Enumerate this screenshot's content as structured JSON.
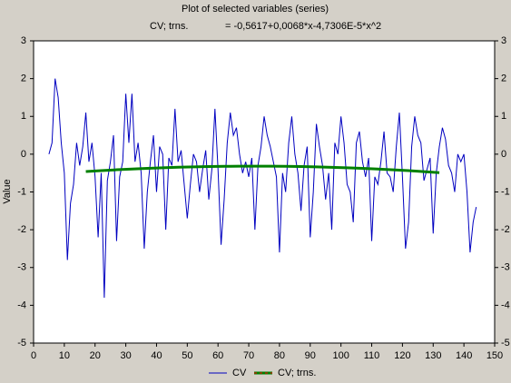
{
  "chart_data": {
    "type": "line",
    "title": "Plot of selected variables (series)",
    "subtitle": "CV; trns.",
    "formula": "= -0,5617+0,0068*x-4,7306E-5*x^2",
    "y_label": "Value",
    "xlim": [
      0,
      150
    ],
    "xticks": [
      0,
      10,
      20,
      30,
      40,
      50,
      60,
      70,
      80,
      90,
      100,
      110,
      120,
      130,
      140,
      150
    ],
    "ylim": [
      -5,
      3
    ],
    "yticks": [
      -5,
      -4,
      -3,
      -2,
      -1,
      0,
      1,
      2,
      3
    ],
    "legend": "bottom",
    "series": [
      {
        "name": "CV",
        "color": "#0000c0",
        "x": [
          5,
          6,
          7,
          8,
          9,
          10,
          11,
          12,
          13,
          14,
          15,
          16,
          17,
          18,
          19,
          20,
          21,
          22,
          23,
          24,
          25,
          26,
          27,
          28,
          29,
          30,
          31,
          32,
          33,
          34,
          35,
          36,
          37,
          38,
          39,
          40,
          41,
          42,
          43,
          44,
          45,
          46,
          47,
          48,
          49,
          50,
          51,
          52,
          53,
          54,
          55,
          56,
          57,
          58,
          59,
          60,
          61,
          62,
          63,
          64,
          65,
          66,
          67,
          68,
          69,
          70,
          71,
          72,
          73,
          74,
          75,
          76,
          77,
          78,
          79,
          80,
          81,
          82,
          83,
          84,
          85,
          86,
          87,
          88,
          89,
          90,
          91,
          92,
          93,
          94,
          95,
          96,
          97,
          98,
          99,
          100,
          101,
          102,
          103,
          104,
          105,
          106,
          107,
          108,
          109,
          110,
          111,
          112,
          113,
          114,
          115,
          116,
          117,
          118,
          119,
          120,
          121,
          122,
          123,
          124,
          125,
          126,
          127,
          128,
          129,
          130,
          131,
          132,
          133,
          134,
          135,
          136,
          137,
          138,
          139,
          140,
          141,
          142,
          143,
          144
        ],
        "values": [
          0,
          0.3,
          2.0,
          1.5,
          0.3,
          -0.5,
          -2.8,
          -1.3,
          -0.8,
          0.3,
          -0.3,
          0.2,
          1.1,
          -0.2,
          0.3,
          -0.6,
          -2.2,
          -0.5,
          -3.8,
          -0.7,
          -0.2,
          0.5,
          -2.3,
          -0.6,
          -0.2,
          1.6,
          0.3,
          1.6,
          -0.2,
          0.3,
          -0.5,
          -2.5,
          -1.0,
          -0.2,
          0.5,
          -1.0,
          0.2,
          0.0,
          -2.0,
          -0.1,
          -0.3,
          1.2,
          -0.2,
          0.1,
          -0.8,
          -1.7,
          -0.8,
          0.0,
          -0.2,
          -1.0,
          -0.4,
          0.1,
          -1.2,
          -0.4,
          1.2,
          -0.4,
          -2.4,
          -1.2,
          0.3,
          1.1,
          0.5,
          0.7,
          0.0,
          -0.5,
          -0.2,
          -0.6,
          -0.1,
          -2.0,
          -0.3,
          0.2,
          1.0,
          0.5,
          0.2,
          -0.2,
          -0.6,
          -2.6,
          -0.5,
          -1.0,
          0.3,
          1.0,
          0.0,
          -0.5,
          -1.5,
          -0.3,
          0.2,
          -2.2,
          -1.0,
          0.8,
          0.2,
          -0.3,
          -1.2,
          -0.5,
          -2.0,
          0.3,
          0.0,
          1.0,
          0.3,
          -0.8,
          -1.0,
          -1.8,
          0.3,
          0.6,
          -0.2,
          -0.6,
          -0.1,
          -2.3,
          -0.6,
          -0.8,
          -0.2,
          0.6,
          -0.5,
          -0.6,
          -1.0,
          0.2,
          1.1,
          -0.6,
          -2.5,
          -1.8,
          0.2,
          1.0,
          0.5,
          0.3,
          -0.7,
          -0.4,
          -0.1,
          -2.1,
          -0.5,
          0.2,
          0.7,
          0.4,
          -0.3,
          -0.5,
          -1.0,
          0.0,
          -0.2,
          0.0,
          -1.0,
          -2.6,
          -1.8,
          -1.4
        ]
      },
      {
        "name": "CV; trns.",
        "color": "#008000",
        "x": [
          17,
          22,
          27,
          32,
          37,
          42,
          47,
          52,
          57,
          62,
          67,
          72,
          77,
          82,
          87,
          92,
          97,
          102,
          107,
          112,
          117,
          122,
          127,
          132
        ],
        "values": [
          -0.4598,
          -0.435,
          -0.4126,
          -0.3925,
          -0.3749,
          -0.3596,
          -0.3466,
          -0.336,
          -0.3278,
          -0.3219,
          -0.3185,
          -0.3173,
          -0.3186,
          -0.3222,
          -0.3282,
          -0.3365,
          -0.3472,
          -0.3603,
          -0.3757,
          -0.3935,
          -0.4137,
          -0.4362,
          -0.4611,
          -0.4884
        ]
      }
    ]
  }
}
